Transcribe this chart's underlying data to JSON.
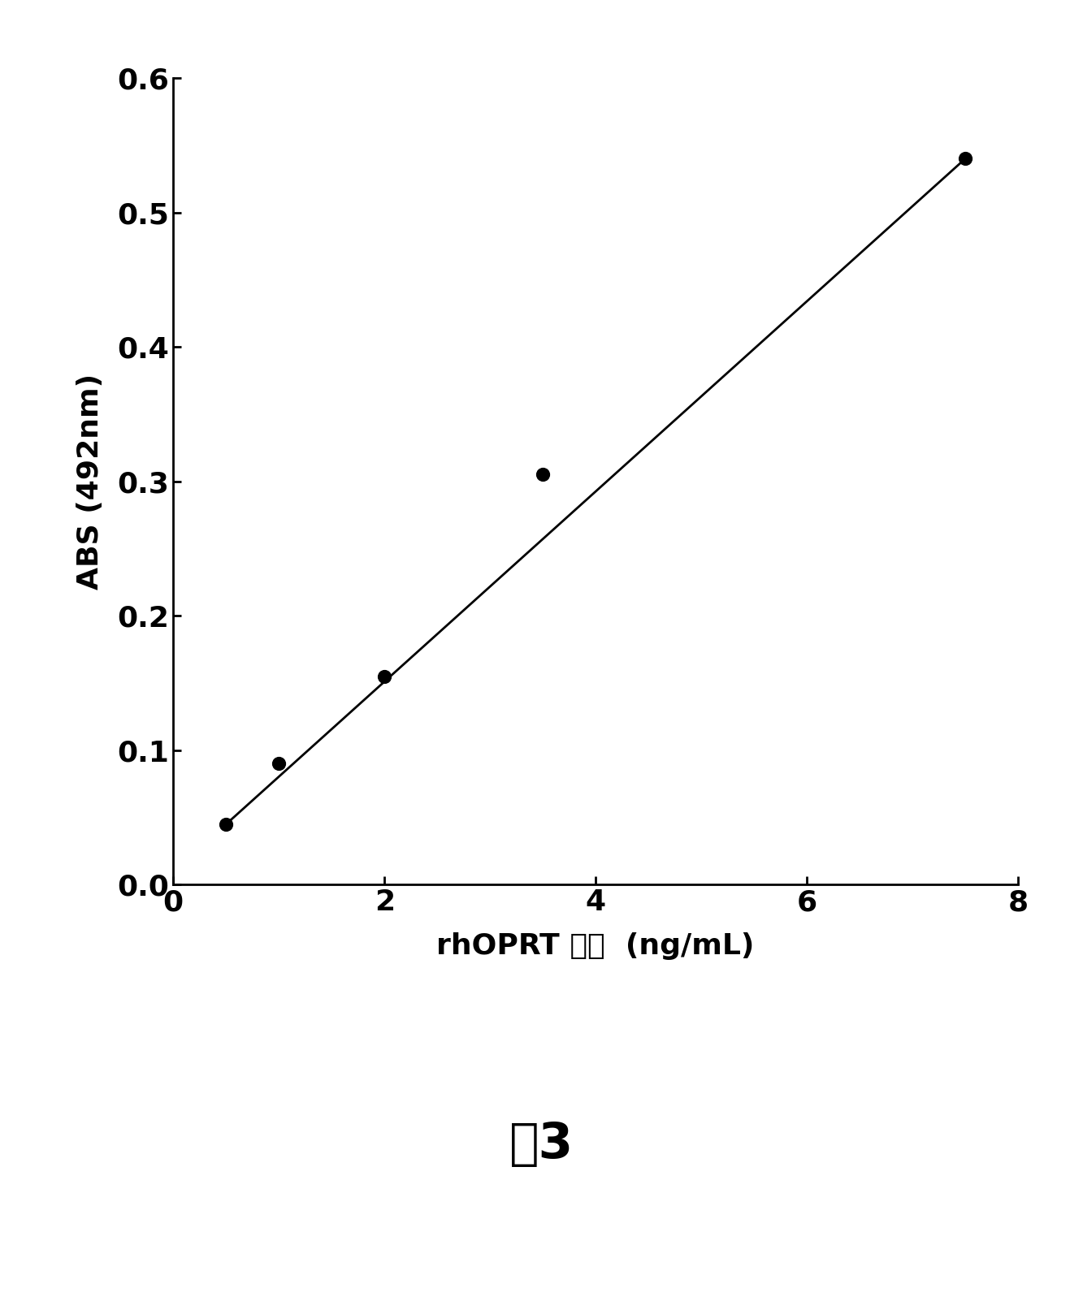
{
  "x_data": [
    0.5,
    1.0,
    2.0,
    3.5,
    7.5
  ],
  "y_data": [
    0.045,
    0.09,
    0.155,
    0.305,
    0.54
  ],
  "xlim": [
    0,
    8
  ],
  "ylim": [
    0,
    0.6
  ],
  "xticks": [
    0,
    2,
    4,
    6,
    8
  ],
  "yticks": [
    0,
    0.1,
    0.2,
    0.3,
    0.4,
    0.5,
    0.6
  ],
  "xlabel_main": "rhOPRT 浓度",
  "xlabel_units": "  (ng/mL)",
  "ylabel": "ABS (492nm)",
  "marker_color": "#000000",
  "line_color": "#000000",
  "marker_size": 130,
  "line_width": 2.0,
  "caption_zh": "图",
  "caption_num": "3",
  "background_color": "#ffffff",
  "tick_fontsize": 26,
  "label_fontsize": 26,
  "caption_fontsize": 44
}
